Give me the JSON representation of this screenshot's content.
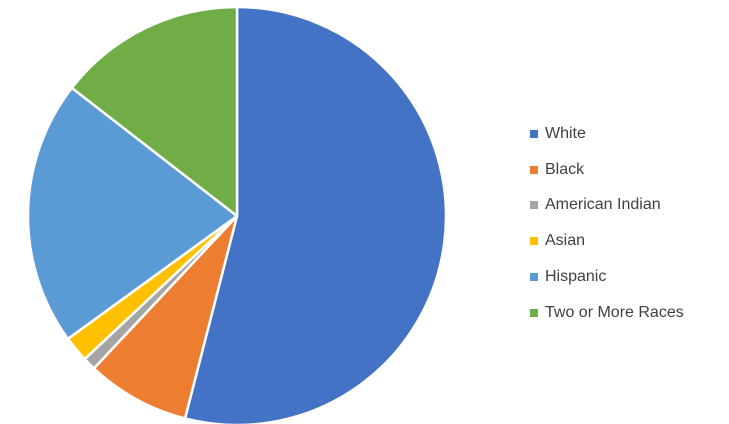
{
  "chart_data": {
    "type": "pie",
    "title": "",
    "start_angle_deg": 0,
    "direction": "clockwise",
    "legend_position": "right",
    "slices": [
      {
        "label": "White",
        "value": 54.0,
        "color": "#4472C4"
      },
      {
        "label": "Black",
        "value": 8.0,
        "color": "#ED7D31"
      },
      {
        "label": "American Indian",
        "value": 1.0,
        "color": "#A5A5A5"
      },
      {
        "label": "Asian",
        "value": 2.0,
        "color": "#FFC000"
      },
      {
        "label": "Hispanic",
        "value": 20.5,
        "color": "#5B9BD5"
      },
      {
        "label": "Two or More Races",
        "value": 14.5,
        "color": "#70AD47"
      }
    ]
  }
}
